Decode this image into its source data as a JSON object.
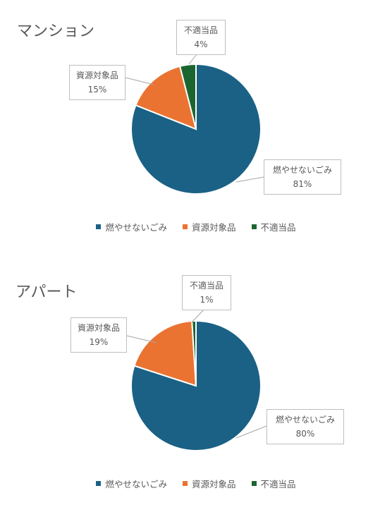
{
  "chart_data": [
    {
      "type": "pie",
      "title": "マンション",
      "categories": [
        "燃やせないごみ",
        "資源対象品",
        "不適当品"
      ],
      "values": [
        81,
        15,
        4
      ],
      "labels": [
        "81%",
        "15%",
        "4%"
      ],
      "colors": [
        "#1a6185",
        "#ea7331",
        "#1b6630"
      ],
      "legend": "bottom"
    },
    {
      "type": "pie",
      "title": "アパート",
      "categories": [
        "燃やせないごみ",
        "資源対象品",
        "不適当品"
      ],
      "values": [
        80,
        19,
        1
      ],
      "labels": [
        "80%",
        "19%",
        "1%"
      ],
      "colors": [
        "#1a6185",
        "#ea7331",
        "#1b6630"
      ],
      "legend": "bottom"
    }
  ]
}
